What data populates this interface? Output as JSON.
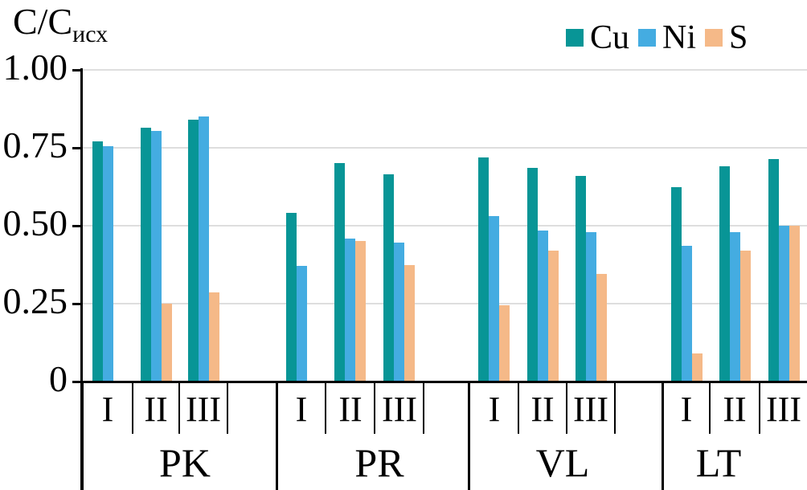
{
  "chart_data": {
    "type": "bar",
    "title": "С/Сисх",
    "ylabel": "С/Сисх",
    "ylabel_main": "С/С",
    "ylabel_sub": "исх",
    "xlabel": "",
    "ylim": [
      0,
      1.0
    ],
    "ytick_values": [
      0,
      0.25,
      0.5,
      0.75,
      1.0
    ],
    "ytick_labels": [
      "0",
      "0.25",
      "0.50",
      "0.75",
      "1.00"
    ],
    "grid": "horizontal",
    "gridline_color": "#dedede",
    "axis_color": "#000000",
    "legend_position": "top-right",
    "series": [
      {
        "name": "Cu",
        "color": "#089596"
      },
      {
        "name": "Ni",
        "color": "#44ACE1"
      },
      {
        "name": "S",
        "color": "#F5B988"
      }
    ],
    "groups": [
      {
        "label": "PK",
        "subcategories": [
          "I",
          "II",
          "III"
        ],
        "values": {
          "Cu": [
            0.77,
            0.815,
            0.84
          ],
          "Ni": [
            0.755,
            0.805,
            0.85
          ],
          "S": [
            null,
            0.25,
            0.285
          ]
        }
      },
      {
        "label": "PR",
        "subcategories": [
          "I",
          "II",
          "III"
        ],
        "values": {
          "Cu": [
            0.54,
            0.7,
            0.665
          ],
          "Ni": [
            0.37,
            0.46,
            0.445
          ],
          "S": [
            null,
            0.45,
            0.375
          ]
        }
      },
      {
        "label": "VL",
        "subcategories": [
          "I",
          "II",
          "III"
        ],
        "values": {
          "Cu": [
            0.72,
            0.685,
            0.66
          ],
          "Ni": [
            0.53,
            0.485,
            0.48
          ],
          "S": [
            0.245,
            0.42,
            0.345
          ]
        }
      },
      {
        "label": "LT",
        "subcategories": [
          "I",
          "II",
          "III"
        ],
        "values": {
          "Cu": [
            0.625,
            0.69,
            0.715
          ],
          "Ni": [
            0.435,
            0.48,
            0.5
          ],
          "S": [
            0.09,
            0.42,
            0.5
          ]
        }
      }
    ]
  }
}
